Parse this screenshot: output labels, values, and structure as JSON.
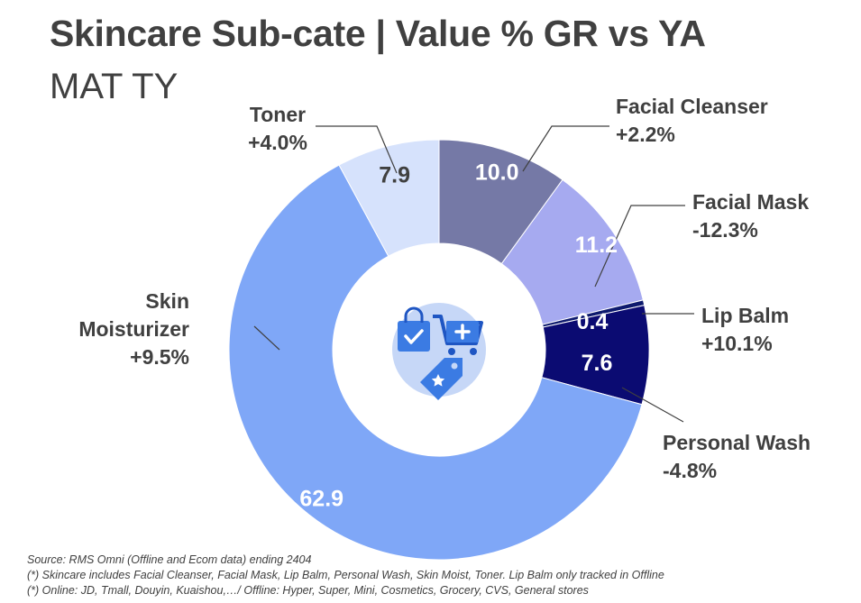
{
  "header": {
    "title": "Skincare Sub-cate | Value % GR vs YA",
    "subtitle": "MAT TY"
  },
  "chart_data": {
    "type": "pie",
    "variant": "donut",
    "start_angle_deg": 0,
    "direction": "clockwise",
    "slices": [
      {
        "name": "Facial Cleanser",
        "value": 10.0,
        "value_label": "10.0",
        "growth": "+2.2%",
        "color": "#7579a6",
        "label_color": "#ffffff"
      },
      {
        "name": "Facial Mask",
        "value": 11.2,
        "value_label": "11.2",
        "growth": "-12.3%",
        "color": "#a6aaf0",
        "label_color": "#ffffff"
      },
      {
        "name": "Lip Balm",
        "value": 0.4,
        "value_label": "0.4",
        "growth": "+10.1%",
        "color": "#0d1a6e",
        "label_color": "#ffffff"
      },
      {
        "name": "Personal Wash",
        "value": 7.6,
        "value_label": "7.6",
        "growth": "-4.8%",
        "color": "#0b0b72",
        "label_color": "#ffffff"
      },
      {
        "name": "Skin Moisturizer",
        "value": 62.9,
        "value_label": "62.9",
        "growth": "+9.5%",
        "color": "#7fa7f7",
        "label_color": "#ffffff"
      },
      {
        "name": "Toner",
        "value": 7.9,
        "value_label": "7.9",
        "growth": "+4.0%",
        "color": "#d6e2fc",
        "label_color": "#404040"
      }
    ],
    "center_icon": "shopping-bag-cart-tag-icon",
    "legend": "none"
  },
  "footnotes": [
    "Source: RMS Omni (Offline and Ecom data) ending 2404",
    "(*) Skincare includes Facial Cleanser, Facial Mask, Lip Balm, Personal Wash, Skin Moist, Toner. Lip Balm only tracked in Offline",
    "(*) Online: JD, Tmall, Douyin, Kuaishou,…/ Offline: Hyper, Super, Mini, Cosmetics, Grocery, CVS, General stores"
  ]
}
